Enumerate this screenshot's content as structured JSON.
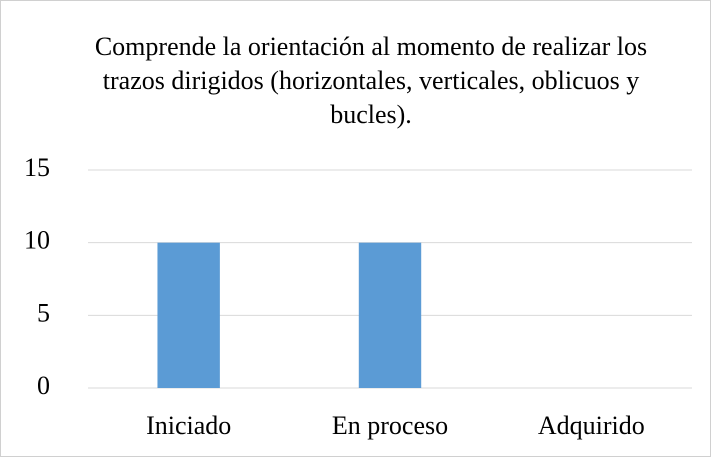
{
  "chart_data": {
    "type": "bar",
    "title": "Comprende la orientación al momento de realizar los trazos dirigidos (horizontales, verticales, oblicuos y bucles).",
    "categories": [
      "Iniciado",
      "En proceso",
      "Adquirido"
    ],
    "values": [
      10,
      10,
      0
    ],
    "color": "#5b9bd5",
    "ylim": [
      0,
      15
    ],
    "yticks": [
      0,
      5,
      10,
      15
    ],
    "grid": true
  }
}
